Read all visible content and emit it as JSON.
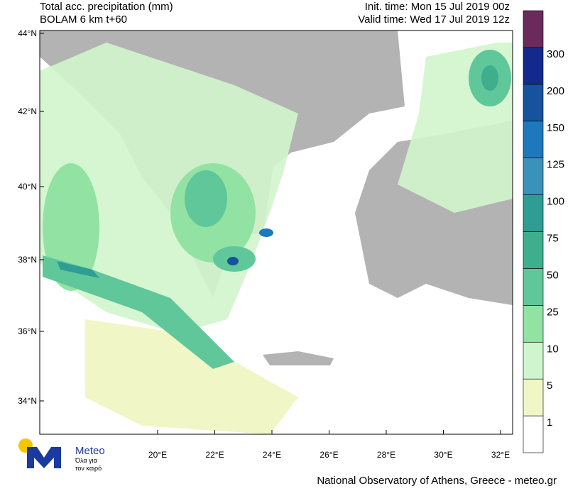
{
  "header": {
    "title_left": [
      "Total acc. precipitation (mm)",
      "BOLAM 6 km t+60"
    ],
    "title_right": [
      "Init. time: Mon 15 Jul 2019 00z",
      "Valid time: Wed 17 Jul 2019 12z"
    ]
  },
  "map": {
    "lat_labels": [
      "44°N",
      "42°N",
      "40°N",
      "38°N",
      "36°N",
      "34°N"
    ],
    "lon_labels": [
      "20°E",
      "22°E",
      "24°E",
      "26°E",
      "28°E",
      "30°E",
      "32°E"
    ]
  },
  "colorbar": {
    "labels": [
      "1",
      "5",
      "10",
      "25",
      "50",
      "75",
      "100",
      "125",
      "150",
      "200",
      "300"
    ],
    "colors": [
      "#ffffff",
      "#f1f6c6",
      "#cdf6cc",
      "#92e2a4",
      "#60c79a",
      "#3fae8c",
      "#2f9d94",
      "#3a92b8",
      "#1e78bc",
      "#16539c",
      "#132a8c",
      "#6b2a5c"
    ]
  },
  "logo": {
    "name": "Meteo",
    "tagline": [
      "Όλα για",
      "τον καιρό"
    ]
  },
  "footer": "National Observatory of Athens, Greece - meteo.gr"
}
